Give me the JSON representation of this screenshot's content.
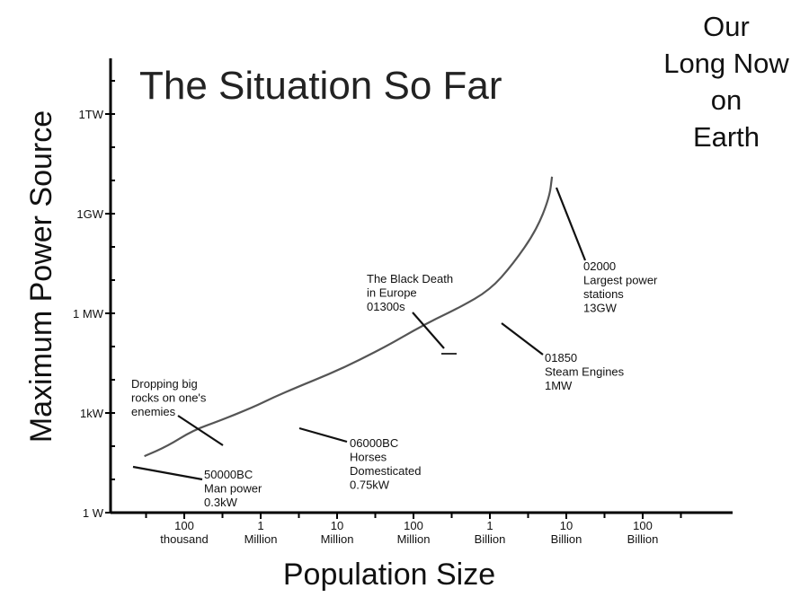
{
  "corner_text": [
    "Our",
    "Long Now",
    "on",
    "Earth"
  ],
  "chart_data": {
    "type": "line",
    "title": "The Situation So Far",
    "xlabel": "Population Size",
    "ylabel": "Maximum Power Source",
    "x_scale": "log",
    "y_scale": "log",
    "grid": false,
    "legend": "none",
    "xlim": [
      20000,
      1000000000000
    ],
    "ylim": [
      1,
      20000000000000
    ],
    "x_ticks": [
      {
        "value": 100000,
        "lines": [
          "100",
          "thousand"
        ]
      },
      {
        "value": 1000000,
        "lines": [
          "1",
          "Million"
        ]
      },
      {
        "value": 10000000,
        "lines": [
          "10",
          "Million"
        ]
      },
      {
        "value": 100000000,
        "lines": [
          "100",
          "Million"
        ]
      },
      {
        "value": 1000000000,
        "lines": [
          "1",
          "Billion"
        ]
      },
      {
        "value": 10000000000,
        "lines": [
          "10",
          "Billion"
        ]
      },
      {
        "value": 100000000000,
        "lines": [
          "100",
          "Billion"
        ]
      }
    ],
    "y_ticks": [
      {
        "value": 1,
        "label": "1 W"
      },
      {
        "value": 1000,
        "label": "1kW"
      },
      {
        "value": 1000000,
        "label": "1 MW"
      },
      {
        "value": 1000000000,
        "label": "1GW"
      },
      {
        "value": 1000000000000,
        "label": "1TW"
      }
    ],
    "series": [
      {
        "x": [
          30000,
          60000,
          130000,
          300000,
          800000,
          1500000,
          3000000,
          8000000,
          20000000,
          50000000,
          100000000,
          200000000,
          400000000,
          1000000000,
          2000000000,
          4000000000,
          6000000000,
          6500000000
        ],
        "y": [
          50,
          100,
          300,
          600,
          1500,
          3000,
          6000,
          15000,
          40000,
          120000,
          300000,
          700000,
          1500000,
          5000000,
          30000000,
          300000000,
          3000000000,
          13000000000
        ]
      }
    ],
    "annotations": [
      {
        "lines": [
          "50000BC",
          "Man power",
          "0.3kW"
        ],
        "x": 30000,
        "y": 50
      },
      {
        "lines": [
          "Dropping big",
          "rocks on one's",
          "enemies"
        ],
        "x": 130000,
        "y": 300
      },
      {
        "lines": [
          "06000BC",
          "Horses",
          "Domesticated",
          "0.75kW"
        ],
        "x": 3000000,
        "y": 6000
      },
      {
        "lines": [
          "The Black Death",
          "in Europe",
          "01300s"
        ],
        "x": 300000000,
        "y": 700000
      },
      {
        "lines": [
          "01850",
          "Steam Engines",
          "1MW"
        ],
        "x": 1000000000,
        "y": 5000000
      },
      {
        "lines": [
          "02000",
          "Largest power",
          "stations",
          "13GW"
        ],
        "x": 6500000000,
        "y": 13000000000
      }
    ]
  }
}
